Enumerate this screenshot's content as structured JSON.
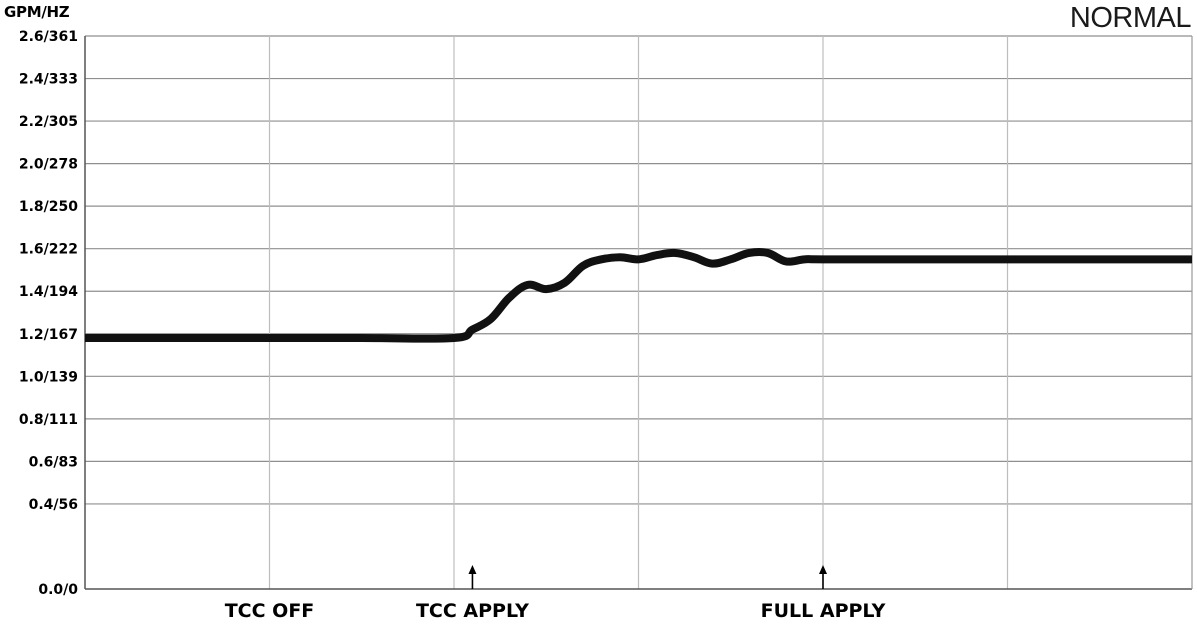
{
  "header": {
    "units": "GPM/HZ",
    "mode": "NORMAL"
  },
  "chart_data": {
    "type": "line",
    "title": "NORMAL",
    "ylabel": "GPM/HZ",
    "ylim": [
      0,
      2.6
    ],
    "yticks": [
      {
        "value": 0.0,
        "label": "0.0/0"
      },
      {
        "value": 0.4,
        "label": "0.4/56"
      },
      {
        "value": 0.6,
        "label": "0.6/83"
      },
      {
        "value": 0.8,
        "label": "0.8/111"
      },
      {
        "value": 1.0,
        "label": "1.0/139"
      },
      {
        "value": 1.2,
        "label": "1.2/167"
      },
      {
        "value": 1.4,
        "label": "1.4/194"
      },
      {
        "value": 1.6,
        "label": "1.6/222"
      },
      {
        "value": 1.8,
        "label": "1.8/250"
      },
      {
        "value": 2.0,
        "label": "2.0/278"
      },
      {
        "value": 2.2,
        "label": "2.2/305"
      },
      {
        "value": 2.4,
        "label": "2.4/333"
      },
      {
        "value": 2.6,
        "label": "2.6/361"
      }
    ],
    "xlim": [
      0,
      6
    ],
    "vertical_gridlines": [
      1,
      2,
      3,
      4,
      5
    ],
    "events": [
      {
        "label": "TCC OFF",
        "x": 1.0,
        "arrow": false
      },
      {
        "label": "TCC APPLY",
        "x": 2.1,
        "arrow": true
      },
      {
        "label": "FULL APPLY",
        "x": 4.0,
        "arrow": true
      }
    ],
    "grid": true,
    "legend": "none",
    "line_color": "#111111",
    "series": [
      {
        "x": [
          0,
          0.5,
          1.0,
          1.5,
          2.0,
          2.1,
          2.2,
          2.3,
          2.4,
          2.5,
          2.6,
          2.7,
          2.8,
          2.9,
          3.0,
          3.1,
          3.2,
          3.3,
          3.4,
          3.5,
          3.6,
          3.7,
          3.8,
          3.9,
          4.0,
          4.5,
          5.0,
          5.5,
          6.0
        ],
        "values": [
          1.18,
          1.18,
          1.18,
          1.18,
          1.18,
          1.22,
          1.27,
          1.37,
          1.43,
          1.41,
          1.44,
          1.52,
          1.55,
          1.56,
          1.55,
          1.57,
          1.58,
          1.56,
          1.53,
          1.55,
          1.58,
          1.58,
          1.54,
          1.55,
          1.55,
          1.55,
          1.55,
          1.55,
          1.55
        ]
      }
    ]
  }
}
